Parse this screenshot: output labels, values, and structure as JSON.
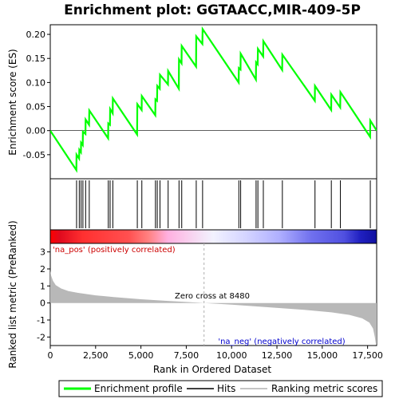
{
  "chart_data": {
    "type": "line",
    "title": "Enrichment plot: GGTAACC,MIR-409-5P",
    "xlabel": "Rank in Ordered Dataset",
    "ylabel_es": "Enrichment score (ES)",
    "ylabel_metric": "Ranked list metric (PreRanked)",
    "x_range": [
      0,
      18000
    ],
    "es_range": [
      -0.1,
      0.22
    ],
    "metric_range": [
      -2.5,
      3.5
    ],
    "x_ticks": [
      "0",
      "2,500",
      "5,000",
      "7,500",
      "10,000",
      "12,500",
      "15,000",
      "17,500"
    ],
    "es_ticks": [
      "-0.05",
      "0.00",
      "0.05",
      "0.10",
      "0.15",
      "0.20"
    ],
    "es_tick_values": [
      -0.05,
      0.0,
      0.05,
      0.1,
      0.15,
      0.2
    ],
    "metric_ticks": [
      "-2",
      "-1",
      "0",
      "1",
      "2",
      "3"
    ],
    "metric_tick_values": [
      -2,
      -1,
      0,
      1,
      2,
      3
    ],
    "hits": [
      1450,
      1600,
      1700,
      1800,
      1950,
      2150,
      3200,
      3300,
      3450,
      4800,
      5050,
      5800,
      5900,
      6050,
      6500,
      7100,
      7250,
      8050,
      8400,
      10400,
      10500,
      11350,
      11450,
      11750,
      12800,
      14600,
      15500,
      16000,
      17650
    ],
    "es_curve": [
      [
        0,
        0.0
      ],
      [
        1440,
        -0.082
      ],
      [
        1450,
        -0.05
      ],
      [
        1590,
        -0.058
      ],
      [
        1600,
        -0.04
      ],
      [
        1690,
        -0.045
      ],
      [
        1700,
        -0.025
      ],
      [
        1790,
        -0.03
      ],
      [
        1800,
        -0.002
      ],
      [
        1940,
        -0.007
      ],
      [
        1950,
        0.023
      ],
      [
        2140,
        0.012
      ],
      [
        2150,
        0.042
      ],
      [
        3190,
        -0.016
      ],
      [
        3200,
        0.015
      ],
      [
        3290,
        0.012
      ],
      [
        3300,
        0.045
      ],
      [
        3440,
        0.036
      ],
      [
        3450,
        0.067
      ],
      [
        4790,
        -0.008
      ],
      [
        4800,
        0.055
      ],
      [
        5040,
        0.043
      ],
      [
        5050,
        0.072
      ],
      [
        5790,
        0.032
      ],
      [
        5800,
        0.065
      ],
      [
        5890,
        0.062
      ],
      [
        5900,
        0.093
      ],
      [
        6040,
        0.087
      ],
      [
        6050,
        0.116
      ],
      [
        6490,
        0.096
      ],
      [
        6500,
        0.124
      ],
      [
        7090,
        0.087
      ],
      [
        7100,
        0.148
      ],
      [
        7240,
        0.14
      ],
      [
        7250,
        0.176
      ],
      [
        8040,
        0.133
      ],
      [
        8050,
        0.196
      ],
      [
        8390,
        0.18
      ],
      [
        8400,
        0.211
      ],
      [
        10390,
        0.1
      ],
      [
        10400,
        0.13
      ],
      [
        10490,
        0.127
      ],
      [
        10500,
        0.16
      ],
      [
        11340,
        0.106
      ],
      [
        11350,
        0.142
      ],
      [
        11440,
        0.138
      ],
      [
        11450,
        0.17
      ],
      [
        11740,
        0.154
      ],
      [
        11750,
        0.186
      ],
      [
        12790,
        0.126
      ],
      [
        12800,
        0.158
      ],
      [
        14590,
        0.062
      ],
      [
        14600,
        0.093
      ],
      [
        15490,
        0.043
      ],
      [
        15500,
        0.075
      ],
      [
        15990,
        0.048
      ],
      [
        16000,
        0.08
      ],
      [
        17640,
        -0.013
      ],
      [
        17650,
        0.021
      ],
      [
        18000,
        0.0
      ]
    ],
    "metric_curve": [
      [
        0,
        1.9
      ],
      [
        50,
        1.6
      ],
      [
        150,
        1.3
      ],
      [
        300,
        1.05
      ],
      [
        600,
        0.85
      ],
      [
        1000,
        0.7
      ],
      [
        1500,
        0.6
      ],
      [
        2500,
        0.45
      ],
      [
        3500,
        0.35
      ],
      [
        5000,
        0.22
      ],
      [
        6500,
        0.12
      ],
      [
        8480,
        0.0
      ],
      [
        10000,
        -0.1
      ],
      [
        12000,
        -0.25
      ],
      [
        14000,
        -0.4
      ],
      [
        15500,
        -0.55
      ],
      [
        16500,
        -0.7
      ],
      [
        17200,
        -0.9
      ],
      [
        17600,
        -1.15
      ],
      [
        17800,
        -1.5
      ],
      [
        17900,
        -2.0
      ],
      [
        17960,
        -2.45
      ],
      [
        18000,
        -2.45
      ]
    ],
    "zero_cross_rank": 8480,
    "zero_cross_label": "Zero cross at 8480",
    "na_pos_label": "'na_pos' (positively correlated)",
    "na_neg_label": "'na_neg' (negatively correlated)",
    "heat_bar_stops": [
      [
        0.0,
        "#ff0000"
      ],
      [
        0.03,
        "#e00a1e"
      ],
      [
        0.1,
        "#ff3030"
      ],
      [
        0.24,
        "#ff5050"
      ],
      [
        0.3,
        "#ff8080"
      ],
      [
        0.36,
        "#ffb0e0"
      ],
      [
        0.47,
        "#f4e6f8"
      ],
      [
        0.5,
        "#f2f2ff"
      ],
      [
        0.6,
        "#d4d4ff"
      ],
      [
        0.7,
        "#b0b0ff"
      ],
      [
        0.8,
        "#7070ee"
      ],
      [
        0.9,
        "#5050e0"
      ],
      [
        0.95,
        "#2020c0"
      ],
      [
        1.0,
        "#1010a0"
      ]
    ],
    "legend": [
      "Enrichment profile",
      "Hits",
      "Ranking metric scores"
    ],
    "colors": {
      "es_line": "#00ff00",
      "hit_line": "#000000",
      "metric_fill": "#b8b8b8",
      "zero_line": "#b0b0b0",
      "frame": "#000000",
      "na_pos": "#cc0000",
      "na_neg": "#0000cc"
    }
  }
}
